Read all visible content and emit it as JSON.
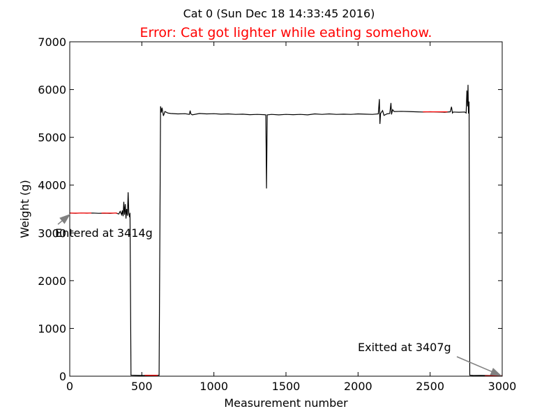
{
  "chart_data": {
    "type": "line",
    "title": "Cat 0 (Sun Dec 18 14:33:45 2016)",
    "subtitle": "Error: Cat got lighter while eating somehow.",
    "xlabel": "Measurement number",
    "ylabel": "Weight (g)",
    "xlim": [
      0,
      3000
    ],
    "ylim": [
      0,
      7000
    ],
    "xticks": [
      0,
      500,
      1000,
      1500,
      2000,
      2500,
      3000
    ],
    "yticks": [
      0,
      1000,
      2000,
      3000,
      4000,
      5000,
      6000,
      7000
    ],
    "grid": false,
    "colors": {
      "line": "#000000",
      "highlight": "#ff0000",
      "arrow": "#808080",
      "error": "#ff0000"
    },
    "series": [
      {
        "values": [
          [
            0,
            3414
          ],
          [
            40,
            3410
          ],
          [
            80,
            3416
          ],
          [
            120,
            3412
          ],
          [
            160,
            3415
          ],
          [
            200,
            3410
          ],
          [
            240,
            3413
          ],
          [
            280,
            3408
          ],
          [
            320,
            3416
          ],
          [
            340,
            3395
          ],
          [
            350,
            3450
          ],
          [
            360,
            3380
          ],
          [
            365,
            3470
          ],
          [
            370,
            3350
          ],
          [
            375,
            3650
          ],
          [
            380,
            3380
          ],
          [
            385,
            3600
          ],
          [
            390,
            3300
          ],
          [
            395,
            3500
          ],
          [
            400,
            3360
          ],
          [
            405,
            3850
          ],
          [
            410,
            3400
          ],
          [
            415,
            3330
          ],
          [
            418,
            3420
          ],
          [
            425,
            20
          ],
          [
            500,
            15
          ],
          [
            560,
            18
          ],
          [
            620,
            20
          ],
          [
            630,
            5650
          ],
          [
            635,
            5520
          ],
          [
            640,
            5620
          ],
          [
            650,
            5450
          ],
          [
            660,
            5540
          ],
          [
            680,
            5510
          ],
          [
            700,
            5500
          ],
          [
            750,
            5490
          ],
          [
            800,
            5495
          ],
          [
            830,
            5480
          ],
          [
            835,
            5560
          ],
          [
            840,
            5490
          ],
          [
            850,
            5470
          ],
          [
            900,
            5500
          ],
          [
            950,
            5490
          ],
          [
            1000,
            5495
          ],
          [
            1050,
            5485
          ],
          [
            1100,
            5490
          ],
          [
            1150,
            5480
          ],
          [
            1200,
            5485
          ],
          [
            1250,
            5475
          ],
          [
            1300,
            5480
          ],
          [
            1350,
            5475
          ],
          [
            1360,
            5470
          ],
          [
            1365,
            3930
          ],
          [
            1370,
            5470
          ],
          [
            1400,
            5480
          ],
          [
            1450,
            5470
          ],
          [
            1500,
            5480
          ],
          [
            1550,
            5475
          ],
          [
            1600,
            5480
          ],
          [
            1650,
            5470
          ],
          [
            1700,
            5490
          ],
          [
            1750,
            5480
          ],
          [
            1800,
            5490
          ],
          [
            1850,
            5480
          ],
          [
            1900,
            5485
          ],
          [
            1950,
            5480
          ],
          [
            2000,
            5490
          ],
          [
            2050,
            5485
          ],
          [
            2100,
            5480
          ],
          [
            2140,
            5490
          ],
          [
            2148,
            5800
          ],
          [
            2152,
            5280
          ],
          [
            2156,
            5500
          ],
          [
            2170,
            5560
          ],
          [
            2180,
            5460
          ],
          [
            2200,
            5490
          ],
          [
            2220,
            5500
          ],
          [
            2228,
            5720
          ],
          [
            2232,
            5480
          ],
          [
            2240,
            5580
          ],
          [
            2250,
            5540
          ],
          [
            2300,
            5545
          ],
          [
            2350,
            5540
          ],
          [
            2400,
            5535
          ],
          [
            2450,
            5530
          ],
          [
            2500,
            5535
          ],
          [
            2550,
            5530
          ],
          [
            2600,
            5525
          ],
          [
            2640,
            5535
          ],
          [
            2648,
            5640
          ],
          [
            2655,
            5510
          ],
          [
            2660,
            5530
          ],
          [
            2700,
            5525
          ],
          [
            2740,
            5530
          ],
          [
            2750,
            5510
          ],
          [
            2755,
            5980
          ],
          [
            2760,
            5650
          ],
          [
            2763,
            6100
          ],
          [
            2766,
            5500
          ],
          [
            2770,
            5750
          ],
          [
            2775,
            20
          ],
          [
            2800,
            15
          ],
          [
            2850,
            18
          ],
          [
            2900,
            15
          ],
          [
            2950,
            12
          ],
          [
            3000,
            10
          ]
        ]
      }
    ],
    "highlights": [
      {
        "values": [
          [
            0,
            3414
          ],
          [
            150,
            3414
          ]
        ]
      },
      {
        "values": [
          [
            220,
            3414
          ],
          [
            330,
            3414
          ]
        ]
      },
      {
        "values": [
          [
            520,
            20
          ],
          [
            610,
            20
          ]
        ]
      },
      {
        "values": [
          [
            2450,
            5535
          ],
          [
            2620,
            5535
          ]
        ]
      },
      {
        "values": [
          [
            2880,
            10
          ],
          [
            3000,
            10
          ]
        ]
      }
    ],
    "annotations": [
      {
        "text": "Entered at 3414g",
        "target": [
          0,
          3414
        ]
      },
      {
        "text": "Exitted at 3407g",
        "target": [
          3000,
          0
        ]
      }
    ]
  }
}
